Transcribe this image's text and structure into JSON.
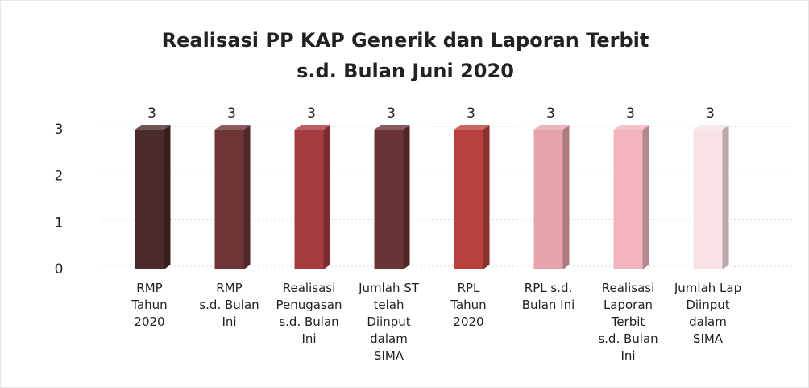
{
  "chart_data": {
    "type": "bar3d",
    "title": "Realisasi PP KAP Generik dan Laporan Terbit\ns.d. Bulan Juni 2020",
    "categories": [
      "RMP\nTahun\n2020",
      "RMP\ns.d. Bulan\nIni",
      "Realisasi\nPenugasan\ns.d. Bulan\nIni",
      "Jumlah ST\ntelah\nDiinput\ndalam\nSIMA",
      "RPL\nTahun\n2020",
      "RPL s.d.\nBulan Ini",
      "Realisasi\nLaporan\nTerbit\ns.d. Bulan\nIni",
      "Jumlah Lap\nDiinput\ndalam\nSIMA"
    ],
    "values": [
      3,
      3,
      3,
      3,
      3,
      3,
      3,
      3
    ],
    "colors": [
      "#4a2a2b",
      "#6e3536",
      "#a63b3f",
      "#6a3335",
      "#b8403f",
      "#e6a3aa",
      "#f2b5bf",
      "#f8e2e6"
    ],
    "ylim": [
      0,
      3
    ],
    "yticks": [
      0,
      1,
      2,
      3
    ],
    "grid": true,
    "data_labels": true
  }
}
